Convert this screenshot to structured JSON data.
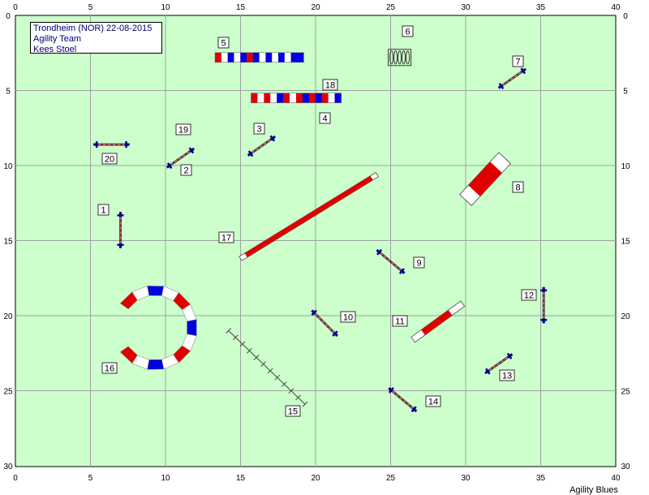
{
  "info": {
    "line1": "Trondheim (NOR) 22-08-2015",
    "line2": "Agility Team",
    "line3": "Kees Stoel"
  },
  "footer": "Agility Blues",
  "axes": {
    "x_ticks": [
      "0",
      "5",
      "10",
      "15",
      "20",
      "25",
      "30",
      "35",
      "40"
    ],
    "y_ticks": [
      "0",
      "5",
      "10",
      "15",
      "20",
      "25",
      "30"
    ]
  },
  "colors": {
    "field": "#ccffcc",
    "grid": "#a0a0a0",
    "pole_blue": "#00008b",
    "tunnel_red": "#e00000",
    "tunnel_blue": "#0000e0"
  },
  "obstacles": [
    {
      "number": "1",
      "kind": "jump"
    },
    {
      "number": "2",
      "kind": "jump"
    },
    {
      "number": "3",
      "kind": "jump"
    },
    {
      "number": "4",
      "kind": "tunnel"
    },
    {
      "number": "5",
      "kind": "tunnel"
    },
    {
      "number": "6",
      "kind": "tire"
    },
    {
      "number": "7",
      "kind": "jump"
    },
    {
      "number": "8",
      "kind": "a-frame"
    },
    {
      "number": "9",
      "kind": "jump"
    },
    {
      "number": "10",
      "kind": "jump"
    },
    {
      "number": "11",
      "kind": "seesaw"
    },
    {
      "number": "12",
      "kind": "jump"
    },
    {
      "number": "13",
      "kind": "jump"
    },
    {
      "number": "14",
      "kind": "jump"
    },
    {
      "number": "15",
      "kind": "weave-poles"
    },
    {
      "number": "16",
      "kind": "tunnel"
    },
    {
      "number": "17",
      "kind": "dog-walk"
    },
    {
      "number": "18",
      "kind": "tunnel"
    },
    {
      "number": "19",
      "kind": "jump"
    },
    {
      "number": "20",
      "kind": "jump"
    }
  ]
}
